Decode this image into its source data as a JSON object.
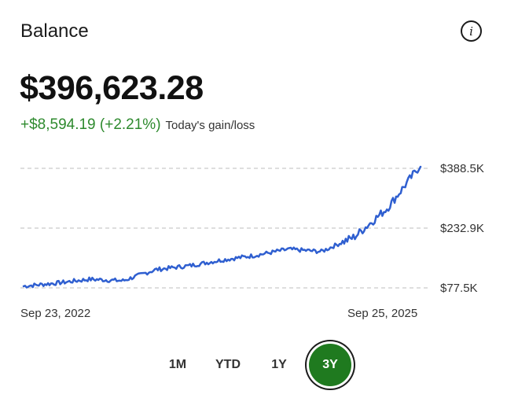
{
  "header": {
    "title": "Balance",
    "info_icon": "info-icon"
  },
  "balance": {
    "value": "$396,623.28",
    "gain": "+$8,594.19 (+2.21%)",
    "gain_label": "Today's gain/loss",
    "gain_color": "#2e8a2e"
  },
  "chart_data": {
    "type": "line",
    "series_color": "#2f5fd0",
    "y_ticks": [
      "$388.5K",
      "$232.9K",
      "$77.5K"
    ],
    "y_tick_values": [
      388500,
      232900,
      77500
    ],
    "ylim": [
      77500,
      388500
    ],
    "x_labels": [
      "Sep 23, 2022",
      "Sep 25, 2025"
    ],
    "grid": "dashed horizontal",
    "x": [
      "2022-09",
      "2022-12",
      "2023-03",
      "2023-06",
      "2023-09",
      "2023-12",
      "2024-03",
      "2024-06",
      "2024-09",
      "2024-12",
      "2025-03",
      "2025-06",
      "2025-09"
    ],
    "y": [
      82000,
      90000,
      100000,
      96000,
      125000,
      135000,
      150000,
      162000,
      178000,
      172000,
      210000,
      285000,
      396600
    ]
  },
  "range_selector": {
    "options": [
      "1M",
      "YTD",
      "1Y",
      "3Y"
    ],
    "selected": "3Y",
    "active_color": "#1f7a1f"
  }
}
